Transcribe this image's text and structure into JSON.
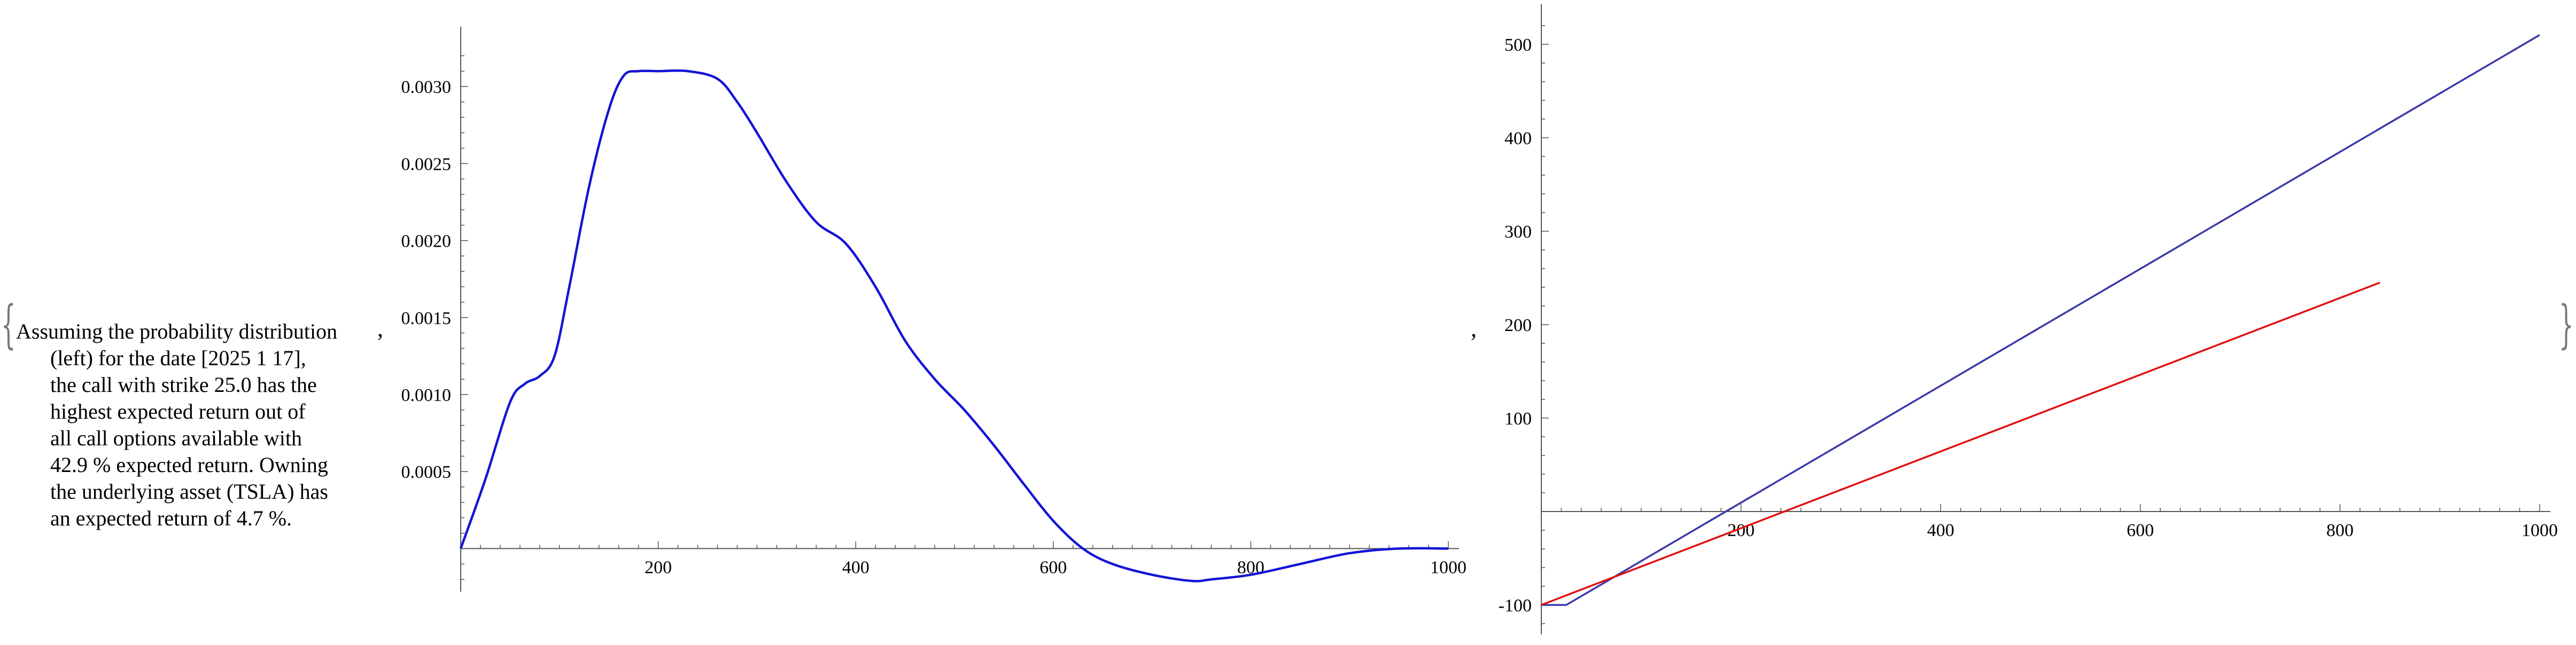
{
  "text": {
    "brace_open": "{",
    "brace_close": "}",
    "separator": ",",
    "note_lines": [
      "Assuming the probability distribution",
      "(left) for the date [2025 1 17],",
      "the call with strike 25.0 has the",
      "highest expected return out of",
      "all call options available with",
      "42.9 % expected return. Owning",
      "the underlying asset (TSLA) has",
      "an expected return of 4.7 %."
    ]
  },
  "colors": {
    "density_line": "#1414d6",
    "line_blue": "#3a3aa8",
    "line_red": "#e01010",
    "axis": "#555555"
  },
  "chart_data": [
    {
      "type": "line",
      "title": "",
      "xlabel": "",
      "ylabel": "",
      "xlim": [
        0,
        1000
      ],
      "ylim": [
        -0.00021,
        0.00325
      ],
      "x_ticks": [
        200,
        400,
        600,
        800,
        1000
      ],
      "x_tick_labels": [
        "200",
        "400",
        "600",
        "800",
        "1000"
      ],
      "y_ticks": [
        0.0005,
        0.001,
        0.0015,
        0.002,
        0.0025,
        0.003
      ],
      "y_tick_labels": [
        "0.0005",
        "0.0010",
        "0.0015",
        "0.0020",
        "0.0025",
        "0.0030"
      ],
      "grid": false,
      "series": [
        {
          "x": [
            0,
            25,
            50,
            65,
            80,
            95,
            110,
            130,
            150,
            165,
            180,
            200,
            230,
            260,
            280,
            300,
            330,
            360,
            390,
            420,
            450,
            480,
            510,
            540,
            570,
            600,
            630,
            660,
            700,
            740,
            760,
            800,
            850,
            900,
            950,
            1000
          ],
          "y": [
            0.0,
            0.00045,
            0.00095,
            0.00107,
            0.00112,
            0.00125,
            0.0017,
            0.00235,
            0.00285,
            0.00307,
            0.0031,
            0.0031,
            0.0031,
            0.00305,
            0.0029,
            0.0027,
            0.00238,
            0.00212,
            0.00198,
            0.0017,
            0.00135,
            0.0011,
            0.0009,
            0.00067,
            0.00042,
            0.00018,
            0.0,
            -0.0001,
            -0.00017,
            -0.00021,
            -0.0002,
            -0.00017,
            -0.0001,
            -3e-05,
            0.0,
            0.0
          ]
        }
      ]
    },
    {
      "type": "line",
      "title": "",
      "xlabel": "",
      "ylabel": "",
      "xlim": [
        0,
        1000
      ],
      "ylim": [
        -120,
        520
      ],
      "x_ticks": [
        200,
        400,
        600,
        800,
        1000
      ],
      "x_tick_labels": [
        "200",
        "400",
        "600",
        "800",
        "1000"
      ],
      "y_ticks": [
        -100,
        100,
        200,
        300,
        400,
        500
      ],
      "y_tick_labels": [
        "-100",
        "100",
        "200",
        "300",
        "400",
        "500"
      ],
      "grid": false,
      "series": [
        {
          "x": [
            0,
            25,
            1000
          ],
          "y": [
            -100,
            -100,
            510
          ]
        },
        {
          "x": [
            0,
            840
          ],
          "y": [
            -100,
            245
          ]
        }
      ]
    }
  ]
}
